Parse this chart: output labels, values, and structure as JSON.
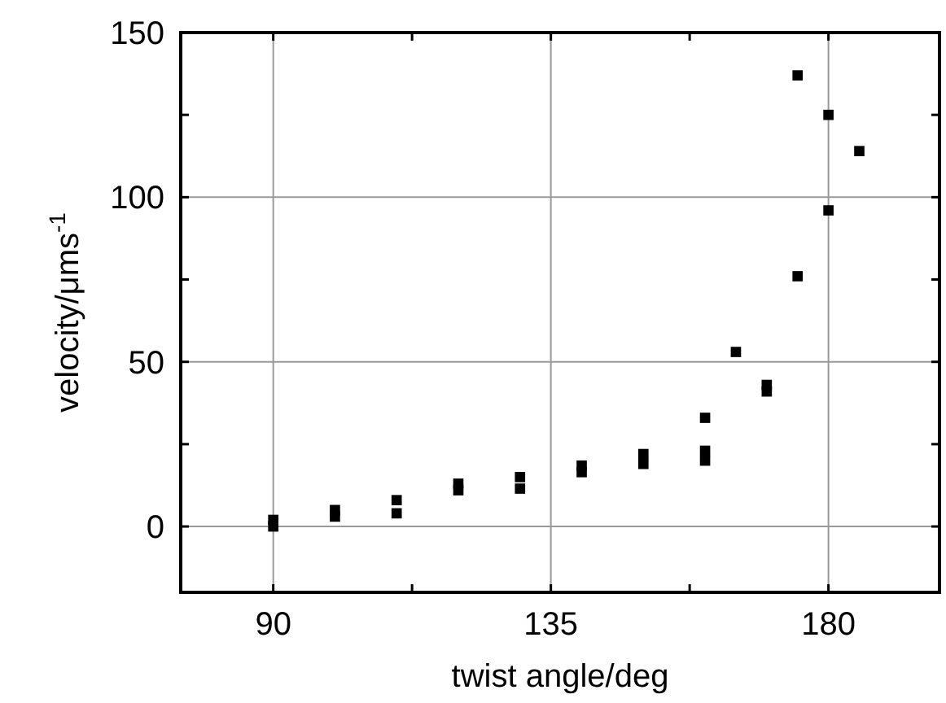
{
  "chart_data": {
    "type": "scatter",
    "xlabel": "twist angle/deg",
    "ylabel": "velocity/μms$^{-1}$",
    "series": [
      {
        "color": "#000000",
        "x": [
          90,
          90,
          100,
          100,
          110,
          110,
          120,
          120,
          130,
          130,
          140,
          140,
          150,
          150,
          160,
          160,
          160,
          165,
          170,
          170,
          175,
          175,
          180,
          180,
          185
        ],
        "values": [
          2,
          0,
          5,
          3,
          8,
          4,
          13,
          11,
          15,
          11.5,
          18.5,
          16.5,
          22,
          19,
          23,
          20,
          33,
          53,
          43,
          41,
          137,
          76,
          125,
          96,
          114
        ]
      }
    ],
    "xlim": [
      75,
      198
    ],
    "ylim": [
      -20,
      150
    ],
    "xticks": [
      90,
      {
        "value": 112.5,
        "label": null
      },
      135,
      {
        "value": 157.5,
        "label": null
      },
      180
    ],
    "yticks": [
      0,
      {
        "value": 25,
        "label": null
      },
      50,
      {
        "value": 75,
        "label": null
      },
      100,
      {
        "value": 125,
        "label": null
      },
      150
    ],
    "grid": true,
    "marker": "square"
  }
}
